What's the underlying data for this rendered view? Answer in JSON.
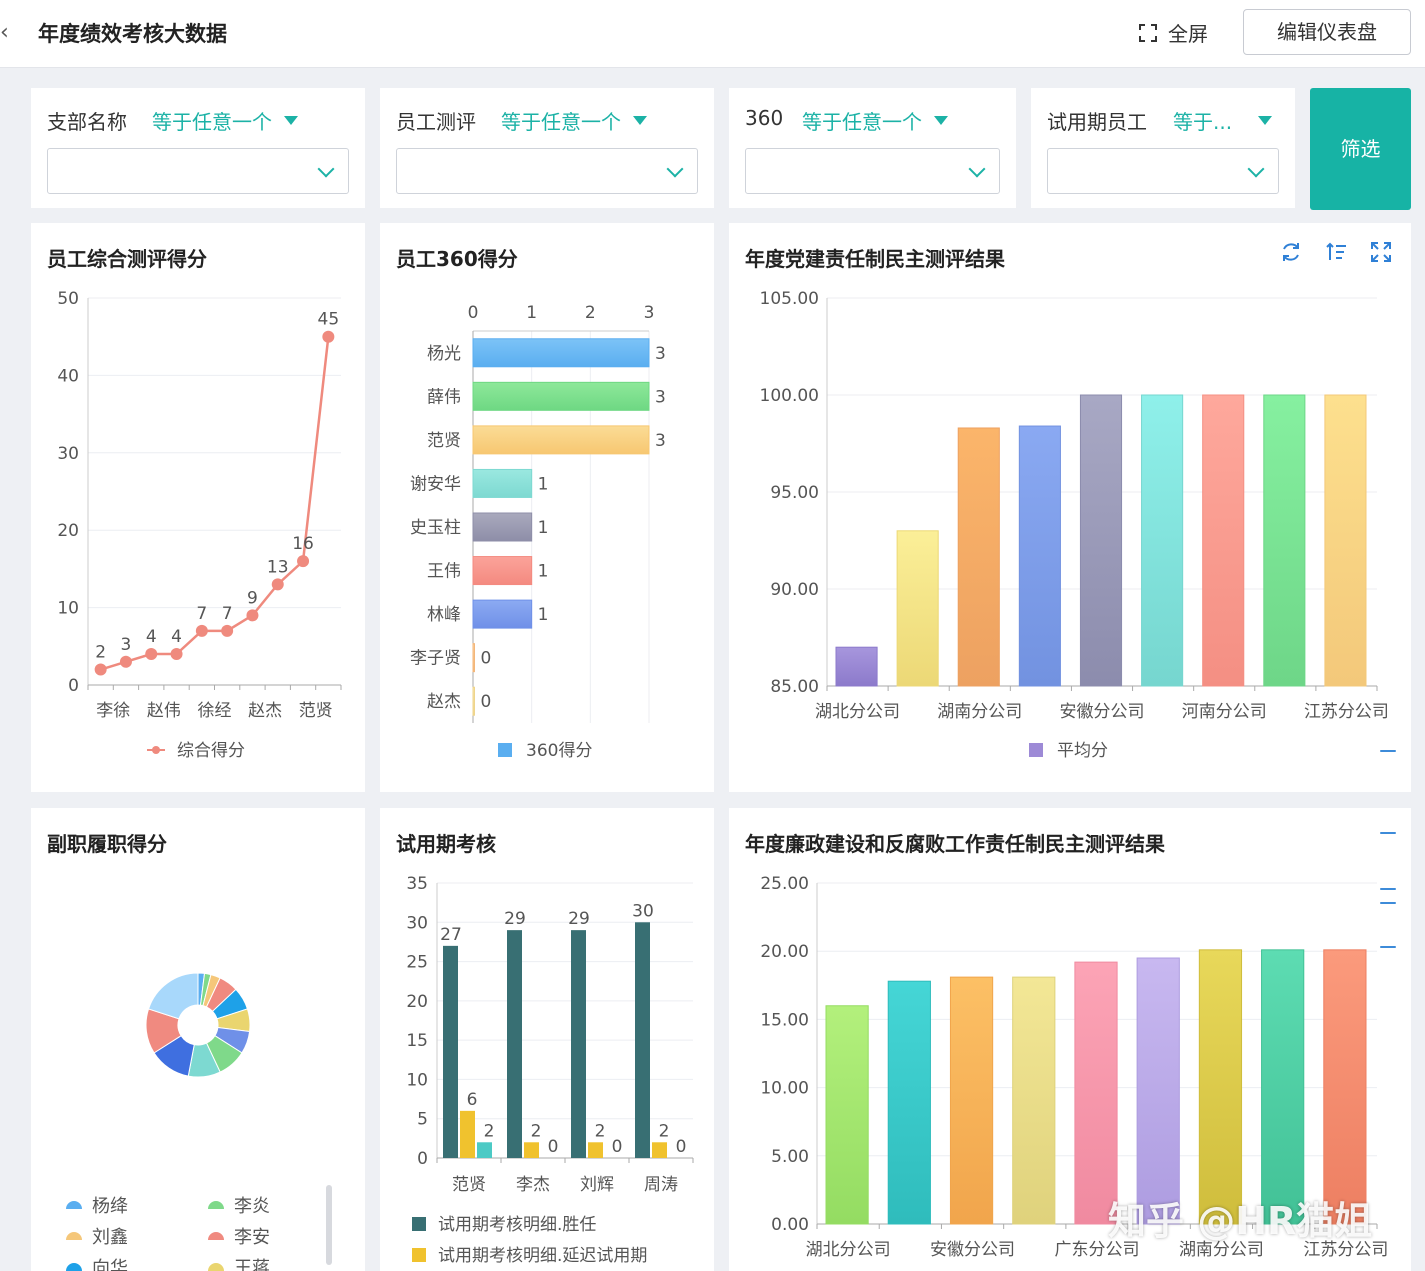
{
  "header": {
    "back_icon": "chevron-left-icon",
    "title": "年度绩效考核大数据",
    "fullscreen_label": "全屏",
    "edit_label": "编辑仪表盘"
  },
  "filters": [
    {
      "label": "支部名称",
      "operator": "等于任意一个",
      "value": ""
    },
    {
      "label": "员工测评",
      "operator": "等于任意一个",
      "value": ""
    },
    {
      "label": "360",
      "operator": "等于任意一个",
      "value": ""
    },
    {
      "label": "试用期员工",
      "operator": "等于...",
      "value": ""
    }
  ],
  "filter_button": "筛选",
  "panels": {
    "score": {
      "title": "员工综合测评得分"
    },
    "s360": {
      "title": "员工360得分"
    },
    "party": {
      "title": "年度党建责任制民主测评结果"
    },
    "deputy": {
      "title": "副职履职得分"
    },
    "probation": {
      "title": "试用期考核"
    },
    "integrity": {
      "title": "年度廉政建设和反腐败工作责任制民主测评结果"
    }
  },
  "colors": {
    "accent": "#17b3a5",
    "line": "#ef8a7e"
  },
  "watermark": "知乎 @HR猫姐",
  "chart_data": [
    {
      "type": "line",
      "title": "员工综合测评得分",
      "x_tick_labels": [
        "李徐",
        "赵伟",
        "徐经",
        "赵杰",
        "范贤"
      ],
      "values": [
        2,
        3,
        4,
        4,
        7,
        7,
        9,
        13,
        16,
        45
      ],
      "series": [
        {
          "name": "综合得分",
          "values": [
            2,
            3,
            4,
            4,
            7,
            7,
            9,
            13,
            16,
            45
          ]
        }
      ],
      "yticks": [
        "0",
        "10",
        "20",
        "30",
        "40",
        "50"
      ],
      "ylim": [
        0,
        50
      ],
      "legend": "bottom"
    },
    {
      "type": "bar",
      "orientation": "horizontal",
      "title": "员工360得分",
      "categories": [
        "杨光",
        "薛伟",
        "范贤",
        "谢安华",
        "史玉柱",
        "王伟",
        "林峰",
        "李子贤",
        "赵杰"
      ],
      "values": [
        3,
        3,
        3,
        1,
        1,
        1,
        1,
        0,
        0
      ],
      "series": [
        {
          "name": "360得分",
          "values": [
            3,
            3,
            3,
            1,
            1,
            1,
            1,
            0,
            0
          ]
        }
      ],
      "xticks": [
        "0",
        "1",
        "2",
        "3"
      ],
      "xlim": [
        0,
        3
      ],
      "legend": "bottom"
    },
    {
      "type": "bar",
      "title": "年度党建责任制民主测评结果",
      "x_tick_labels": [
        "湖北分公司",
        "湖南分公司",
        "安徽分公司",
        "河南分公司",
        "江苏分公司"
      ],
      "values": [
        87.0,
        93.0,
        98.3,
        98.4,
        100.0,
        100.0,
        100.0,
        100.0,
        100.0
      ],
      "series": [
        {
          "name": "平均分",
          "values": [
            87.0,
            93.0,
            98.3,
            98.4,
            100.0,
            100.0,
            100.0,
            100.0,
            100.0
          ]
        }
      ],
      "yticks": [
        "85.00",
        "90.00",
        "95.00",
        "100.00",
        "105.00"
      ],
      "ylim": [
        85,
        105
      ],
      "legend": "bottom"
    },
    {
      "type": "pie",
      "title": "副职履职得分",
      "legend_entries": [
        "杨绛",
        "李炎",
        "刘鑫",
        "李安",
        "向华",
        "王蒋"
      ],
      "legend": "bottom"
    },
    {
      "type": "bar",
      "title": "试用期考核",
      "categories": [
        "范贤",
        "李杰",
        "刘辉",
        "周涛"
      ],
      "series": [
        {
          "name": "试用期考核明细.胜任",
          "values": [
            27,
            29,
            29,
            30
          ]
        },
        {
          "name": "试用期考核明细.延迟试用期",
          "values": [
            6,
            2,
            2,
            2
          ]
        },
        {
          "name": "",
          "values": [
            2,
            0,
            0,
            0
          ]
        }
      ],
      "yticks": [
        "0",
        "5",
        "10",
        "15",
        "20",
        "25",
        "30",
        "35"
      ],
      "ylim": [
        0,
        35
      ],
      "legend": "bottom"
    },
    {
      "type": "bar",
      "title": "年度廉政建设和反腐败工作责任制民主测评结果",
      "x_tick_labels": [
        "湖北分公司",
        "安徽分公司",
        "广东分公司",
        "湖南分公司",
        "江苏分公司"
      ],
      "values": [
        16.0,
        17.8,
        18.1,
        18.1,
        19.2,
        19.5,
        20.1,
        20.1,
        20.1
      ],
      "yticks": [
        "0.00",
        "5.00",
        "10.00",
        "15.00",
        "20.00",
        "25.00"
      ],
      "ylim": [
        0,
        25
      ]
    }
  ]
}
